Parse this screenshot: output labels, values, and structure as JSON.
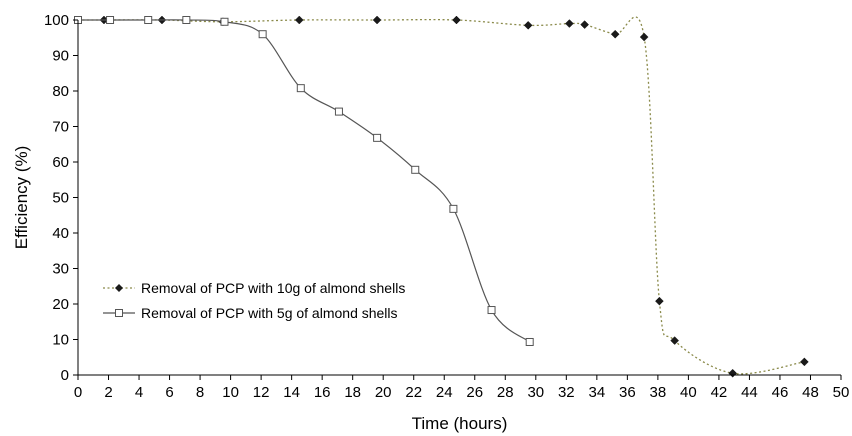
{
  "chart_data": {
    "type": "line",
    "xlabel": "Time (hours)",
    "ylabel": "Efficiency (%)",
    "xlim": [
      0,
      50
    ],
    "ylim": [
      0,
      100
    ],
    "xticks": [
      0,
      2,
      4,
      6,
      8,
      10,
      12,
      14,
      16,
      18,
      20,
      22,
      24,
      26,
      28,
      30,
      32,
      34,
      36,
      38,
      40,
      42,
      44,
      46,
      48,
      50
    ],
    "yticks": [
      0,
      10,
      20,
      30,
      40,
      50,
      60,
      70,
      80,
      90,
      100
    ],
    "grid": false,
    "legend_position": "lower-left",
    "series": [
      {
        "name": "Removal of PCP with 10g of almond shells",
        "line_style": "dotted",
        "marker": "filled-diamond",
        "color": "#8a8a4a",
        "marker_color": "#1a1a1a",
        "x": [
          0,
          1.7,
          5.5,
          9.5,
          14.5,
          19.6,
          24.8,
          29.5,
          32.2,
          33.2,
          35.2,
          37.1,
          38.1,
          39.1,
          42.9,
          47.6
        ],
        "y": [
          100,
          100,
          100,
          99.5,
          100,
          100,
          100,
          98.5,
          99,
          98.7,
          96,
          95.2,
          20.8,
          9.7,
          0.5,
          3.7
        ]
      },
      {
        "name": "Removal of PCP with 5g of almond shells",
        "line_style": "solid",
        "marker": "open-square",
        "color": "#555555",
        "marker_color": "#555555",
        "x": [
          0,
          2.1,
          4.6,
          7.1,
          9.6,
          12.1,
          14.6,
          17.1,
          19.6,
          22.1,
          24.6,
          27.1,
          29.6
        ],
        "y": [
          100,
          100,
          100,
          100,
          99.5,
          96,
          80.8,
          74.2,
          66.8,
          57.8,
          46.8,
          18.3,
          9.3
        ]
      }
    ]
  }
}
